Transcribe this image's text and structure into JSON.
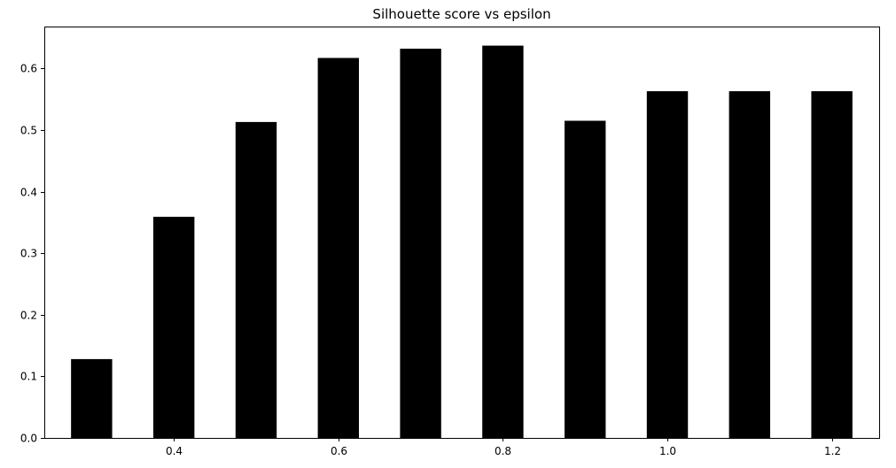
{
  "chart_data": {
    "type": "bar",
    "title": "Silhouette score vs epsilon",
    "xlabel": "",
    "ylabel": "",
    "x": [
      0.3,
      0.4,
      0.5,
      0.6,
      0.7,
      0.8,
      0.9,
      1.0,
      1.1,
      1.2
    ],
    "values": [
      0.128,
      0.359,
      0.513,
      0.617,
      0.632,
      0.637,
      0.515,
      0.563,
      0.563,
      0.563
    ],
    "bar_width": 0.05,
    "bar_color": "#000000",
    "xlim": [
      0.2425,
      1.2575
    ],
    "ylim": [
      0,
      0.668
    ],
    "xticks": [
      0.4,
      0.6,
      0.8,
      1.0,
      1.2
    ],
    "xtick_labels": [
      "0.4",
      "0.6",
      "0.8",
      "1.0",
      "1.2"
    ],
    "yticks": [
      0.0,
      0.1,
      0.2,
      0.3,
      0.4,
      0.5,
      0.6
    ],
    "ytick_labels": [
      "0.0",
      "0.1",
      "0.2",
      "0.3",
      "0.4",
      "0.5",
      "0.6"
    ],
    "grid": false,
    "legend": "none"
  }
}
